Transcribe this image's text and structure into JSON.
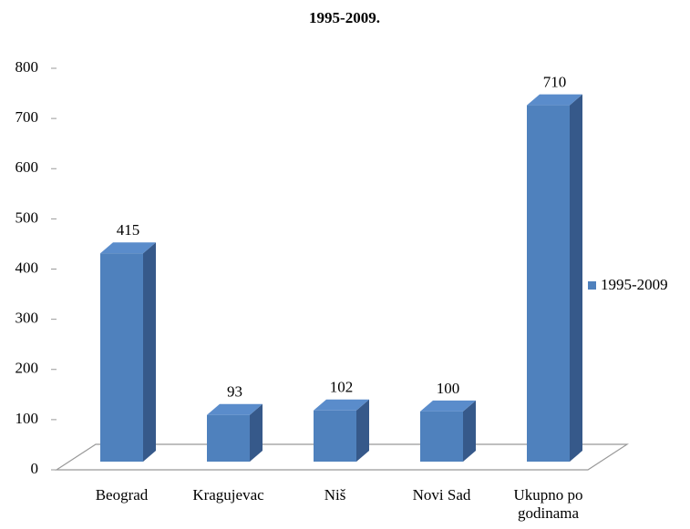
{
  "chart_data": {
    "type": "bar",
    "title": "1995-2009.",
    "categories": [
      "Beograd",
      "Kragujevac",
      "Niš",
      "Novi Sad",
      "Ukupno po godinama"
    ],
    "series": [
      {
        "name": "1995-2009",
        "color": "#4f81bd",
        "values": [
          415,
          93,
          102,
          100,
          710
        ]
      }
    ],
    "ylim": [
      0,
      800
    ],
    "yticks": [
      0,
      100,
      200,
      300,
      400,
      500,
      600,
      700,
      800
    ],
    "legend": "right"
  }
}
